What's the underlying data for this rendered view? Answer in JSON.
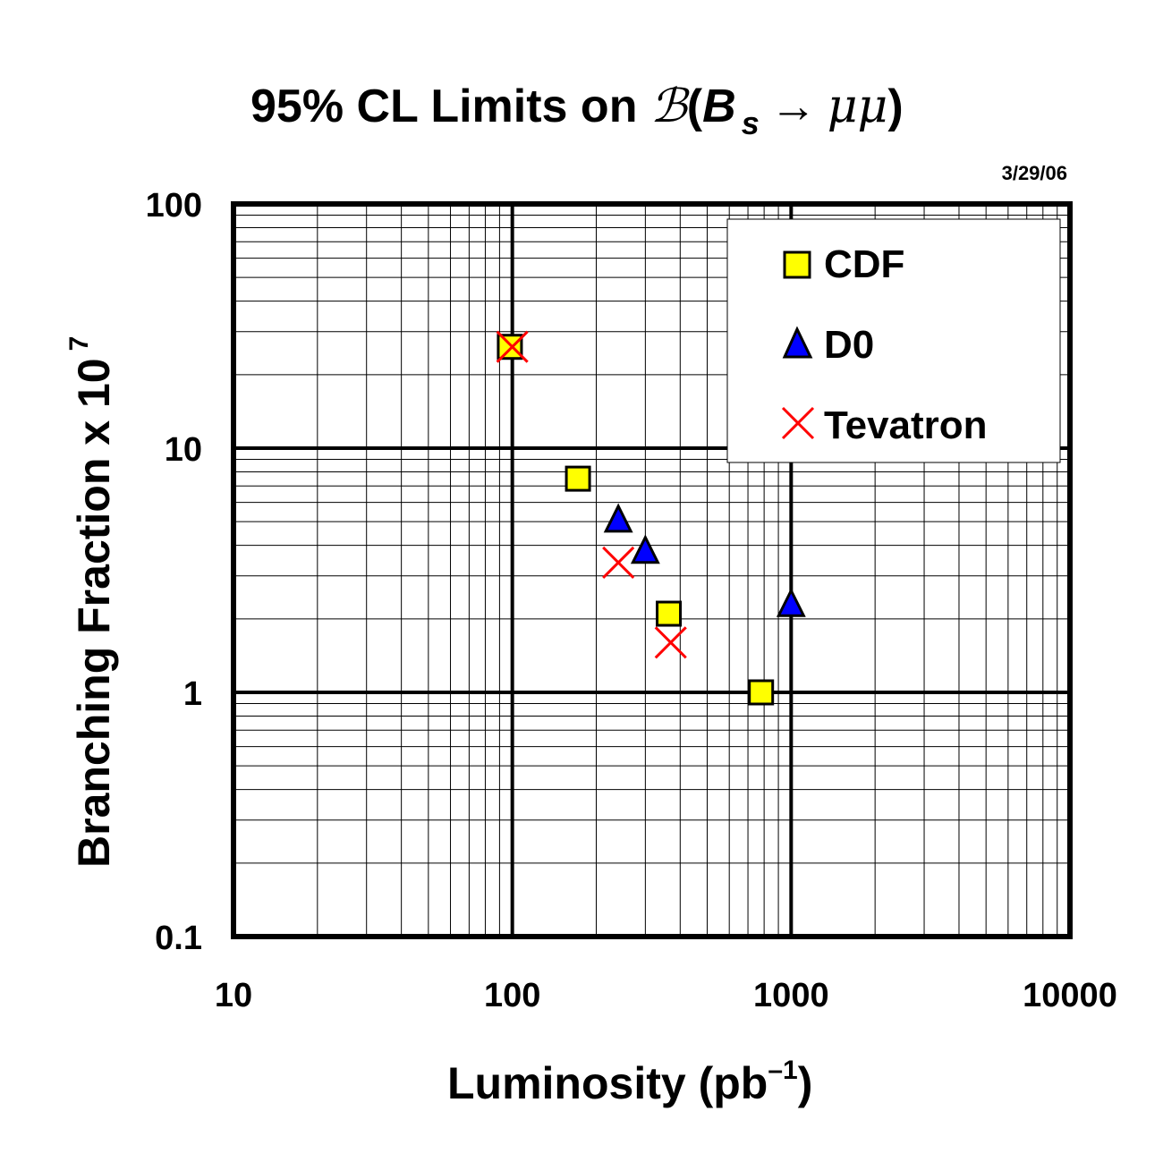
{
  "chart_data": {
    "type": "scatter",
    "title": {
      "prefix": "95% CL Limits on ",
      "script_b": "ℬ",
      "open": "(",
      "b": "B",
      "sub": "s",
      "arrow": "→",
      "mumu": "μμ",
      "close": ")"
    },
    "date_note": "3/29/06",
    "xlabel": {
      "main": "Luminosity (pb",
      "sup": "–1",
      "close": ")"
    },
    "ylabel": {
      "main": "Branching Fraction x 10",
      "sup": "7"
    },
    "x_scale": "log",
    "y_scale": "log",
    "xlim": [
      10,
      10000
    ],
    "ylim": [
      0.1,
      100
    ],
    "x_ticks": [
      {
        "value": 10,
        "label": "10"
      },
      {
        "value": 100,
        "label": "100"
      },
      {
        "value": 1000,
        "label": "1000"
      },
      {
        "value": 10000,
        "label": "10000"
      }
    ],
    "y_ticks": [
      {
        "value": 0.1,
        "label": "0.1"
      },
      {
        "value": 1,
        "label": "1"
      },
      {
        "value": 10,
        "label": "10"
      },
      {
        "value": 100,
        "label": "100"
      }
    ],
    "grid": true,
    "legend_position": "top-right",
    "series": [
      {
        "name": "CDF",
        "marker": "square",
        "color": "#ffff00",
        "points": [
          [
            98,
            26
          ],
          [
            172,
            7.5
          ],
          [
            364,
            2.1
          ],
          [
            780,
            1.0
          ]
        ]
      },
      {
        "name": "D0",
        "marker": "triangle",
        "color": "#0000ff",
        "points": [
          [
            240,
            5.1
          ],
          [
            300,
            3.8
          ],
          [
            1000,
            2.3
          ]
        ]
      },
      {
        "name": "Tevatron",
        "marker": "x",
        "color": "#ff0000",
        "points": [
          [
            100,
            26
          ],
          [
            240,
            3.4
          ],
          [
            370,
            1.6
          ]
        ]
      }
    ]
  }
}
